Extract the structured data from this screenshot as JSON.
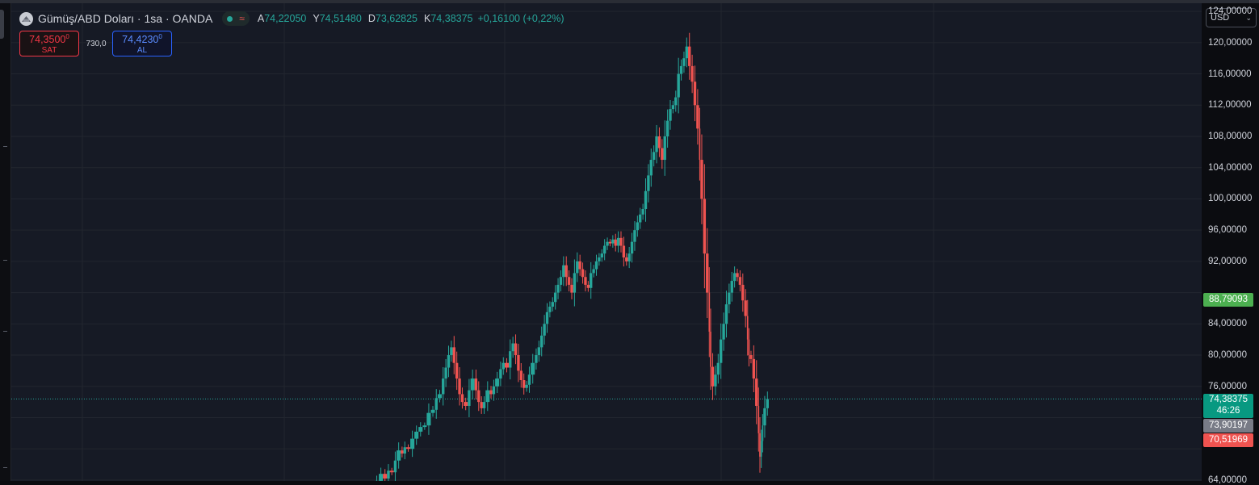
{
  "header": {
    "symbol_title": "Gümüş/ABD Doları · 1sa · OANDA",
    "symbol_icon": "silver-coin-icon",
    "status_wave_glyph": "≈",
    "ohlc": [
      {
        "key": "A",
        "value": "74,22050"
      },
      {
        "key": "Y",
        "value": "74,51480"
      },
      {
        "key": "D",
        "value": "73,62825"
      },
      {
        "key": "K",
        "value": "74,38375"
      }
    ],
    "change": "+0,16100 (+0,22%)"
  },
  "trade": {
    "sell_price": "74,3500",
    "sell_price_small": "0",
    "sell_label": "SAT",
    "spread": "730,0",
    "buy_price": "74,4230",
    "buy_price_small": "0",
    "buy_label": "AL"
  },
  "currency": {
    "label": "USD",
    "chevron_icon": "chevron-down-icon"
  },
  "price_axis": {
    "ticks": [
      "124,00000",
      "120,00000",
      "116,00000",
      "112,00000",
      "108,00000",
      "104,00000",
      "100,00000",
      "96,00000",
      "92,00000",
      "84,00000",
      "80,00000",
      "76,00000",
      "64,00000"
    ],
    "badges": {
      "high": "88,79093",
      "last": "74,38375",
      "countdown": "46:26",
      "mid": "73,90197",
      "low": "70,51969"
    }
  },
  "colors": {
    "up": "#26a69a",
    "down": "#ef5350",
    "background": "#161a25",
    "grid": "#22262f"
  },
  "chart_data": {
    "type": "line",
    "series_style": "candlestick",
    "y_scale": "linear",
    "ylim": [
      63.0,
      124.9
    ],
    "grid": true,
    "current_price_line": 74.38375,
    "y_ticks": [
      124,
      120,
      116,
      112,
      108,
      104,
      100,
      96,
      92,
      84,
      80,
      76,
      64
    ],
    "points": [
      [
        0,
        63.2
      ],
      [
        3,
        63.9
      ],
      [
        6,
        64.8
      ],
      [
        9,
        64.2
      ],
      [
        11,
        65.2
      ],
      [
        14,
        65.0
      ],
      [
        16,
        66.5
      ],
      [
        19,
        67.8
      ],
      [
        21,
        67.4
      ],
      [
        23,
        68.2
      ],
      [
        26,
        68.0
      ],
      [
        29,
        69.3
      ],
      [
        32,
        70.2
      ],
      [
        35,
        70.8
      ],
      [
        38,
        71.0
      ],
      [
        41,
        72.6
      ],
      [
        44,
        73.0
      ],
      [
        46,
        74.5
      ],
      [
        49,
        75.0
      ],
      [
        51,
        77.0
      ],
      [
        53,
        78.4
      ],
      [
        55,
        80.0
      ],
      [
        57,
        81.0
      ],
      [
        59,
        79.0
      ],
      [
        61,
        77.0
      ],
      [
        63,
        75.0
      ],
      [
        65,
        74.0
      ],
      [
        68,
        73.5
      ],
      [
        70,
        75.5
      ],
      [
        73,
        77.0
      ],
      [
        75,
        75.5
      ],
      [
        77,
        74.0
      ],
      [
        79,
        73.2
      ],
      [
        81,
        74.0
      ],
      [
        84,
        75.5
      ],
      [
        86,
        75.0
      ],
      [
        88,
        76.0
      ],
      [
        91,
        77.0
      ],
      [
        93,
        78.2
      ],
      [
        95,
        79.0
      ],
      [
        98,
        78.4
      ],
      [
        100,
        80.5
      ],
      [
        102,
        81.5
      ],
      [
        104,
        80.0
      ],
      [
        106,
        78.0
      ],
      [
        108,
        76.8
      ],
      [
        110,
        75.8
      ],
      [
        112,
        76.2
      ],
      [
        114,
        77.5
      ],
      [
        117,
        79.0
      ],
      [
        119,
        80.0
      ],
      [
        121,
        81.0
      ],
      [
        123,
        82.5
      ],
      [
        125,
        84.0
      ],
      [
        127,
        85.5
      ],
      [
        129,
        86.2
      ],
      [
        131,
        86.8
      ],
      [
        133,
        88.0
      ],
      [
        135,
        89.0
      ],
      [
        137,
        90.0
      ],
      [
        139,
        91.5
      ],
      [
        141,
        90.0
      ],
      [
        143,
        89.0
      ],
      [
        145,
        88.0
      ],
      [
        147,
        90.5
      ],
      [
        149,
        92.0
      ],
      [
        151,
        91.0
      ],
      [
        153,
        90.0
      ],
      [
        155,
        89.0
      ],
      [
        157,
        88.6
      ],
      [
        159,
        90.5
      ],
      [
        161,
        91.0
      ],
      [
        163,
        92.0
      ],
      [
        165,
        92.5
      ],
      [
        167,
        93.0
      ],
      [
        169,
        94.0
      ],
      [
        171,
        94.5
      ],
      [
        173,
        94.3
      ],
      [
        175,
        94.8
      ],
      [
        177,
        94.0
      ],
      [
        179,
        95.0
      ],
      [
        181,
        94.0
      ],
      [
        183,
        92.5
      ],
      [
        185,
        92.0
      ],
      [
        187,
        93.0
      ],
      [
        189,
        94.5
      ],
      [
        191,
        96.0
      ],
      [
        193,
        97.0
      ],
      [
        195,
        98.0
      ],
      [
        197,
        98.7
      ],
      [
        199,
        101.0
      ],
      [
        201,
        103.0
      ],
      [
        203,
        105.0
      ],
      [
        205,
        106.0
      ],
      [
        207,
        108.0
      ],
      [
        209,
        106.5
      ],
      [
        211,
        105.0
      ],
      [
        213,
        108.0
      ],
      [
        215,
        110.0
      ],
      [
        217,
        111.5
      ],
      [
        219,
        112.0
      ],
      [
        221,
        113.0
      ],
      [
        223,
        116.0
      ],
      [
        225,
        117.0
      ],
      [
        227,
        118.0
      ],
      [
        229,
        119.5
      ],
      [
        231,
        117.0
      ],
      [
        233,
        115.0
      ],
      [
        235,
        112.0
      ],
      [
        237,
        109.0
      ],
      [
        238,
        105.0
      ],
      [
        240,
        100.0
      ],
      [
        242,
        93.0
      ],
      [
        244,
        88.0
      ],
      [
        245,
        83.0
      ],
      [
        246,
        78.5
      ],
      [
        248,
        76.0
      ],
      [
        250,
        77.5
      ],
      [
        252,
        79.0
      ],
      [
        254,
        82.0
      ],
      [
        256,
        84.0
      ],
      [
        258,
        86.5
      ],
      [
        260,
        88.0
      ],
      [
        262,
        89.5
      ],
      [
        264,
        90.5
      ],
      [
        266,
        90.0
      ],
      [
        268,
        89.0
      ],
      [
        270,
        87.0
      ],
      [
        272,
        85.0
      ],
      [
        273,
        82.0
      ],
      [
        274,
        80.0
      ],
      [
        276,
        79.5
      ],
      [
        278,
        77.0
      ],
      [
        280,
        73.5
      ],
      [
        281,
        70.0
      ],
      [
        282,
        67.0
      ],
      [
        283,
        69.0
      ],
      [
        284,
        71.0
      ],
      [
        286,
        73.2
      ],
      [
        288,
        74.38
      ]
    ]
  }
}
